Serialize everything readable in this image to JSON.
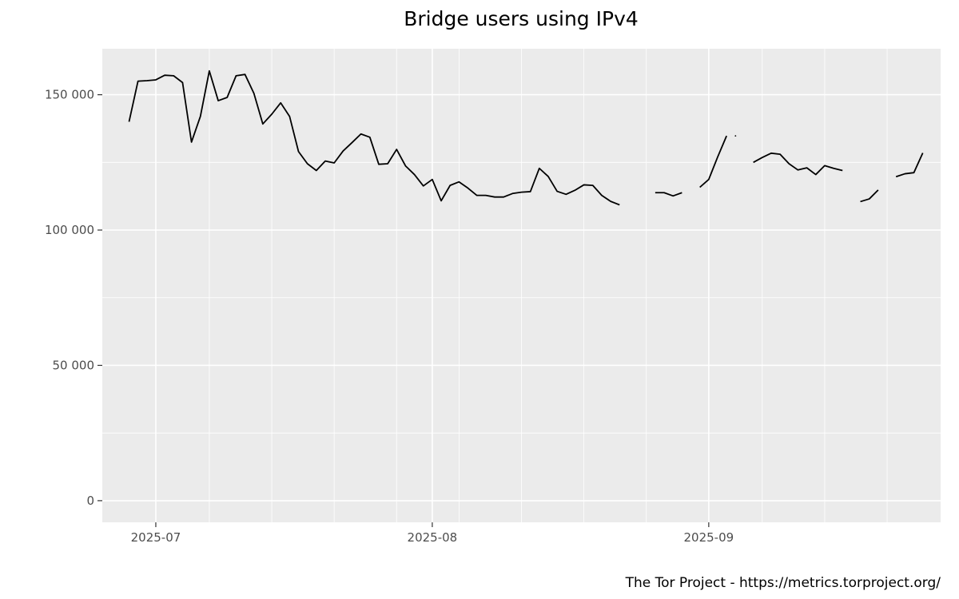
{
  "chart_data": {
    "type": "line",
    "title": "Bridge users using IPv4",
    "xlabel": "",
    "ylabel": "",
    "ylim": [
      -8000,
      167000
    ],
    "xlim": [
      "2025-06-25",
      "2025-09-27"
    ],
    "x_ticks": [
      {
        "date": "2025-07-01",
        "label": "2025-07"
      },
      {
        "date": "2025-08-01",
        "label": "2025-08"
      },
      {
        "date": "2025-09-01",
        "label": "2025-09"
      }
    ],
    "x_minor_gridlines": [
      "2025-07-07",
      "2025-07-14",
      "2025-07-21",
      "2025-07-28",
      "2025-08-04",
      "2025-08-11",
      "2025-08-18",
      "2025-08-25",
      "2025-09-07",
      "2025-09-14",
      "2025-09-21"
    ],
    "y_ticks": [
      {
        "value": 0,
        "label": "0"
      },
      {
        "value": 50000,
        "label": "50 000"
      },
      {
        "value": 100000,
        "label": "100 000"
      },
      {
        "value": 150000,
        "label": "150 000"
      }
    ],
    "grid": true,
    "series": [
      {
        "color": "#000000",
        "segments": [
          [
            [
              "2025-06-28",
              140000
            ],
            [
              "2025-06-29",
              155000
            ],
            [
              "2025-06-30",
              155200
            ],
            [
              "2025-07-01",
              155500
            ],
            [
              "2025-07-02",
              157200
            ],
            [
              "2025-07-03",
              157000
            ],
            [
              "2025-07-04",
              154500
            ],
            [
              "2025-07-05",
              132500
            ],
            [
              "2025-07-06",
              142000
            ],
            [
              "2025-07-07",
              158800
            ],
            [
              "2025-07-08",
              147800
            ],
            [
              "2025-07-09",
              149000
            ],
            [
              "2025-07-10",
              157000
            ],
            [
              "2025-07-11",
              157500
            ],
            [
              "2025-07-12",
              150500
            ],
            [
              "2025-07-13",
              139200
            ],
            [
              "2025-07-14",
              142800
            ],
            [
              "2025-07-15",
              147000
            ],
            [
              "2025-07-16",
              142000
            ],
            [
              "2025-07-17",
              129000
            ],
            [
              "2025-07-18",
              124500
            ],
            [
              "2025-07-19",
              122000
            ],
            [
              "2025-07-20",
              125500
            ],
            [
              "2025-07-21",
              124800
            ],
            [
              "2025-07-22",
              129200
            ],
            [
              "2025-07-23",
              132300
            ],
            [
              "2025-07-24",
              135500
            ],
            [
              "2025-07-25",
              134300
            ],
            [
              "2025-07-26",
              124300
            ],
            [
              "2025-07-27",
              124500
            ],
            [
              "2025-07-28",
              129800
            ],
            [
              "2025-07-29",
              123700
            ],
            [
              "2025-07-30",
              120500
            ],
            [
              "2025-07-31",
              116300
            ],
            [
              "2025-08-01",
              118700
            ],
            [
              "2025-08-02",
              110800
            ],
            [
              "2025-08-03",
              116500
            ],
            [
              "2025-08-04",
              117800
            ],
            [
              "2025-08-05",
              115500
            ],
            [
              "2025-08-06",
              112800
            ],
            [
              "2025-08-07",
              112800
            ],
            [
              "2025-08-08",
              112200
            ],
            [
              "2025-08-09",
              112200
            ],
            [
              "2025-08-10",
              113500
            ],
            [
              "2025-08-11",
              114000
            ],
            [
              "2025-08-12",
              114200
            ],
            [
              "2025-08-13",
              122800
            ],
            [
              "2025-08-14",
              119800
            ],
            [
              "2025-08-15",
              114300
            ],
            [
              "2025-08-16",
              113200
            ],
            [
              "2025-08-17",
              114700
            ],
            [
              "2025-08-18",
              116700
            ],
            [
              "2025-08-19",
              116500
            ],
            [
              "2025-08-20",
              112800
            ],
            [
              "2025-08-21",
              110600
            ],
            [
              "2025-08-22",
              109300
            ]
          ],
          [
            [
              "2025-08-26",
              113800
            ],
            [
              "2025-08-27",
              113800
            ],
            [
              "2025-08-28",
              112600
            ],
            [
              "2025-08-29",
              113800
            ]
          ],
          [
            [
              "2025-08-31",
              115800
            ],
            [
              "2025-09-01",
              118700
            ],
            [
              "2025-09-02",
              127000
            ],
            [
              "2025-09-03",
              134800
            ]
          ],
          [
            [
              "2025-09-04",
              134800
            ]
          ],
          [
            [
              "2025-09-06",
              125000
            ],
            [
              "2025-09-07",
              126800
            ],
            [
              "2025-09-08",
              128400
            ],
            [
              "2025-09-09",
              128000
            ],
            [
              "2025-09-10",
              124500
            ],
            [
              "2025-09-11",
              122200
            ],
            [
              "2025-09-12",
              123000
            ],
            [
              "2025-09-13",
              120500
            ],
            [
              "2025-09-14",
              123800
            ],
            [
              "2025-09-15",
              122800
            ],
            [
              "2025-09-16",
              122000
            ]
          ],
          [
            [
              "2025-09-18",
              110500
            ],
            [
              "2025-09-19",
              111500
            ],
            [
              "2025-09-20",
              114800
            ]
          ],
          [
            [
              "2025-09-22",
              119700
            ],
            [
              "2025-09-23",
              120800
            ],
            [
              "2025-09-24",
              121200
            ],
            [
              "2025-09-25",
              128500
            ]
          ]
        ]
      }
    ]
  },
  "credit": "The Tor Project - https://metrics.torproject.org/",
  "colors": {
    "panel_background": "#ebebeb",
    "grid_major": "#ffffff",
    "grid_minor": "#f5f5f5",
    "line": "#000000",
    "tick_text": "#4d4d4d"
  }
}
